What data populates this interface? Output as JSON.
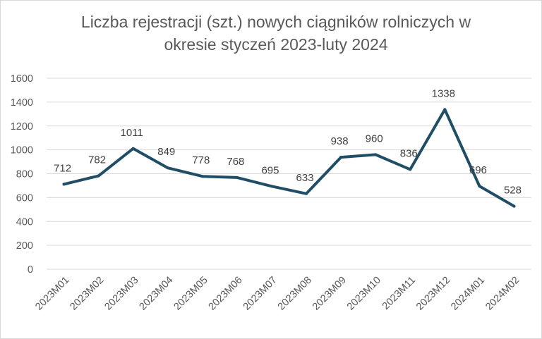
{
  "chart_data": {
    "type": "line",
    "title": "Liczba rejestracji (szt.) nowych ciągników rolniczych w okresie styczeń 2023-luty 2024",
    "title_lines": [
      "Liczba rejestracji (szt.) nowych ciągników rolniczych w",
      "okresie styczeń 2023-luty 2024"
    ],
    "categories": [
      "2023M01",
      "2023M02",
      "2023M03",
      "2023M04",
      "2023M05",
      "2023M06",
      "2023M07",
      "2023M08",
      "2023M09",
      "2023M10",
      "2023M11",
      "2023M12",
      "2024M01",
      "2024M02"
    ],
    "values": [
      712,
      782,
      1011,
      849,
      778,
      768,
      695,
      633,
      938,
      960,
      836,
      1338,
      696,
      528
    ],
    "data_labels": [
      "712",
      "782",
      "1011",
      "849",
      "778",
      "768",
      "695",
      "633",
      "938",
      "960",
      "836",
      "1338",
      "696",
      "528"
    ],
    "ylim": [
      0,
      1600
    ],
    "yticks": [
      "0",
      "200",
      "400",
      "600",
      "800",
      "1000",
      "1200",
      "1400",
      "1600"
    ],
    "grid": true,
    "legend": "none",
    "xlabel": "",
    "ylabel": "",
    "line_color": "#1f4e66",
    "grid_color": "#d9d9d9"
  }
}
